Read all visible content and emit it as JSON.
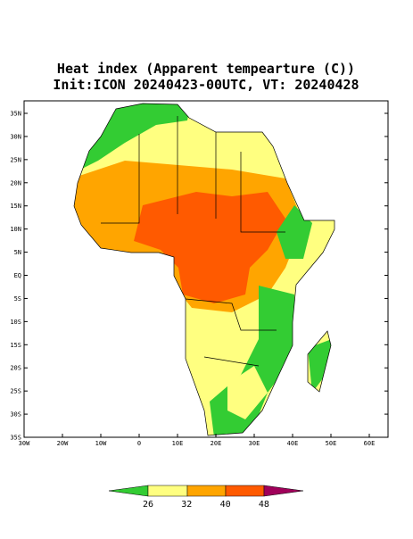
{
  "header": {
    "title": "Heat index (Apparent tempearture (C))",
    "subtitle": "Init:ICON 20240423-00UTC, VT: 20240428"
  },
  "map": {
    "lat_labels": [
      "35N",
      "30N",
      "25N",
      "20N",
      "15N",
      "10N",
      "5N",
      "EQ",
      "5S",
      "10S",
      "15S",
      "20S",
      "25S",
      "30S",
      "35S"
    ],
    "lon_labels": [
      "30W",
      "20W",
      "10W",
      "0",
      "10E",
      "20E",
      "30E",
      "40E",
      "50E",
      "60E"
    ]
  },
  "colorbar": {
    "labels": [
      "26",
      "32",
      "40",
      "48"
    ]
  }
}
